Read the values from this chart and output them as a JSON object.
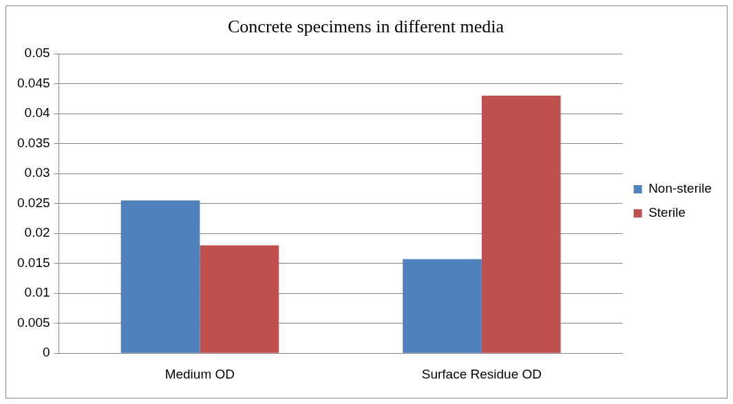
{
  "chart_data": {
    "type": "bar",
    "title": "Concrete specimens in different media",
    "categories": [
      "Medium OD",
      "Surface Residue OD"
    ],
    "series": [
      {
        "name": "Non-sterile",
        "color": "#4f81bd",
        "values": [
          0.0255,
          0.0157
        ]
      },
      {
        "name": "Sterile",
        "color": "#c0504d",
        "values": [
          0.018,
          0.043
        ]
      }
    ],
    "ylim": [
      0,
      0.05
    ],
    "yticks": [
      0,
      0.005,
      0.01,
      0.015,
      0.02,
      0.025,
      0.03,
      0.035,
      0.04,
      0.045,
      0.05
    ],
    "grid": "y",
    "legend": "right"
  }
}
